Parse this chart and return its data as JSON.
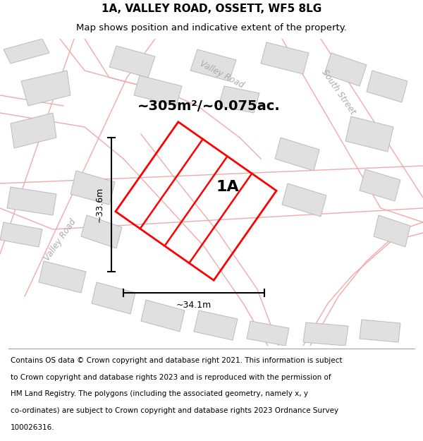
{
  "title": "1A, VALLEY ROAD, OSSETT, WF5 8LG",
  "subtitle": "Map shows position and indicative extent of the property.",
  "area_label": "~305m²/~0.075ac.",
  "plot_label": "1A",
  "dim_horizontal": "~34.1m",
  "dim_vertical": "~33.6m",
  "road_label_valley": "Valley Road",
  "road_label_south": "South Street",
  "footer": "Contains OS data © Crown copyright and database right 2021. This information is subject to Crown copyright and database rights 2023 and is reproduced with the permission of HM Land Registry. The polygons (including the associated geometry, namely x, y co-ordinates) are subject to Crown copyright and database rights 2023 Ordnance Survey 100026316.",
  "map_bg": "#ffffff",
  "plot_color": "#ff0000",
  "road_outline": "#f0aaaa",
  "building_fill": "#e0e0e0",
  "building_outline": "#bbbbbb",
  "title_fontsize": 11,
  "subtitle_fontsize": 9.5,
  "footer_fontsize": 7.5,
  "area_fontsize": 14,
  "label_fontsize": 16,
  "dim_fontsize": 9
}
